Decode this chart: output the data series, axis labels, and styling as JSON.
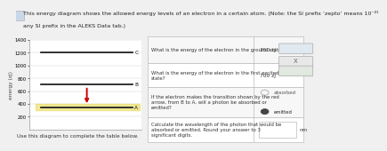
{
  "title_line1": "This energy diagram shows the allowed energy levels of an electron in a certain atom. (Note: the SI prefix ‘zepto’ means 10⁻²¹",
  "title_line2": "any SI prefix in the ALEKS Data tab.)",
  "ylabel": "energy (zJ)",
  "ylim": [
    0,
    1400
  ],
  "yticks": [
    200,
    400,
    600,
    800,
    1000,
    1200,
    1400
  ],
  "level_A": 350,
  "level_B": 700,
  "level_C": 1200,
  "level_color": "#111111",
  "arrow_color": "#cc0000",
  "highlight_color": "#e8d84a",
  "bg_color": "#f0f0f0",
  "plot_bg": "#ffffff",
  "grid_color": "#cccccc",
  "table_bg": "#ffffff",
  "table_border": "#bbbbbb",
  "q1": "What is the energy of the electron in the ground state?",
  "q2": "What is the energy of the electron in the first excited\nstate?",
  "q3": "If the electron makes the transition shown by the red\narrow, from B to A, will a photon be absorbed or\nemitted?",
  "q4": "Calculate the wavelength of the photon that would be\nabsorbed or emitted. Round your answer to 3\nsignificant digits.",
  "a1": "350 zJ",
  "a2": "700 zJ",
  "use_text": "Use this diagram to complete the table below.",
  "font_size_title": 4.5,
  "font_size_body": 4.2,
  "font_size_tick": 3.8
}
